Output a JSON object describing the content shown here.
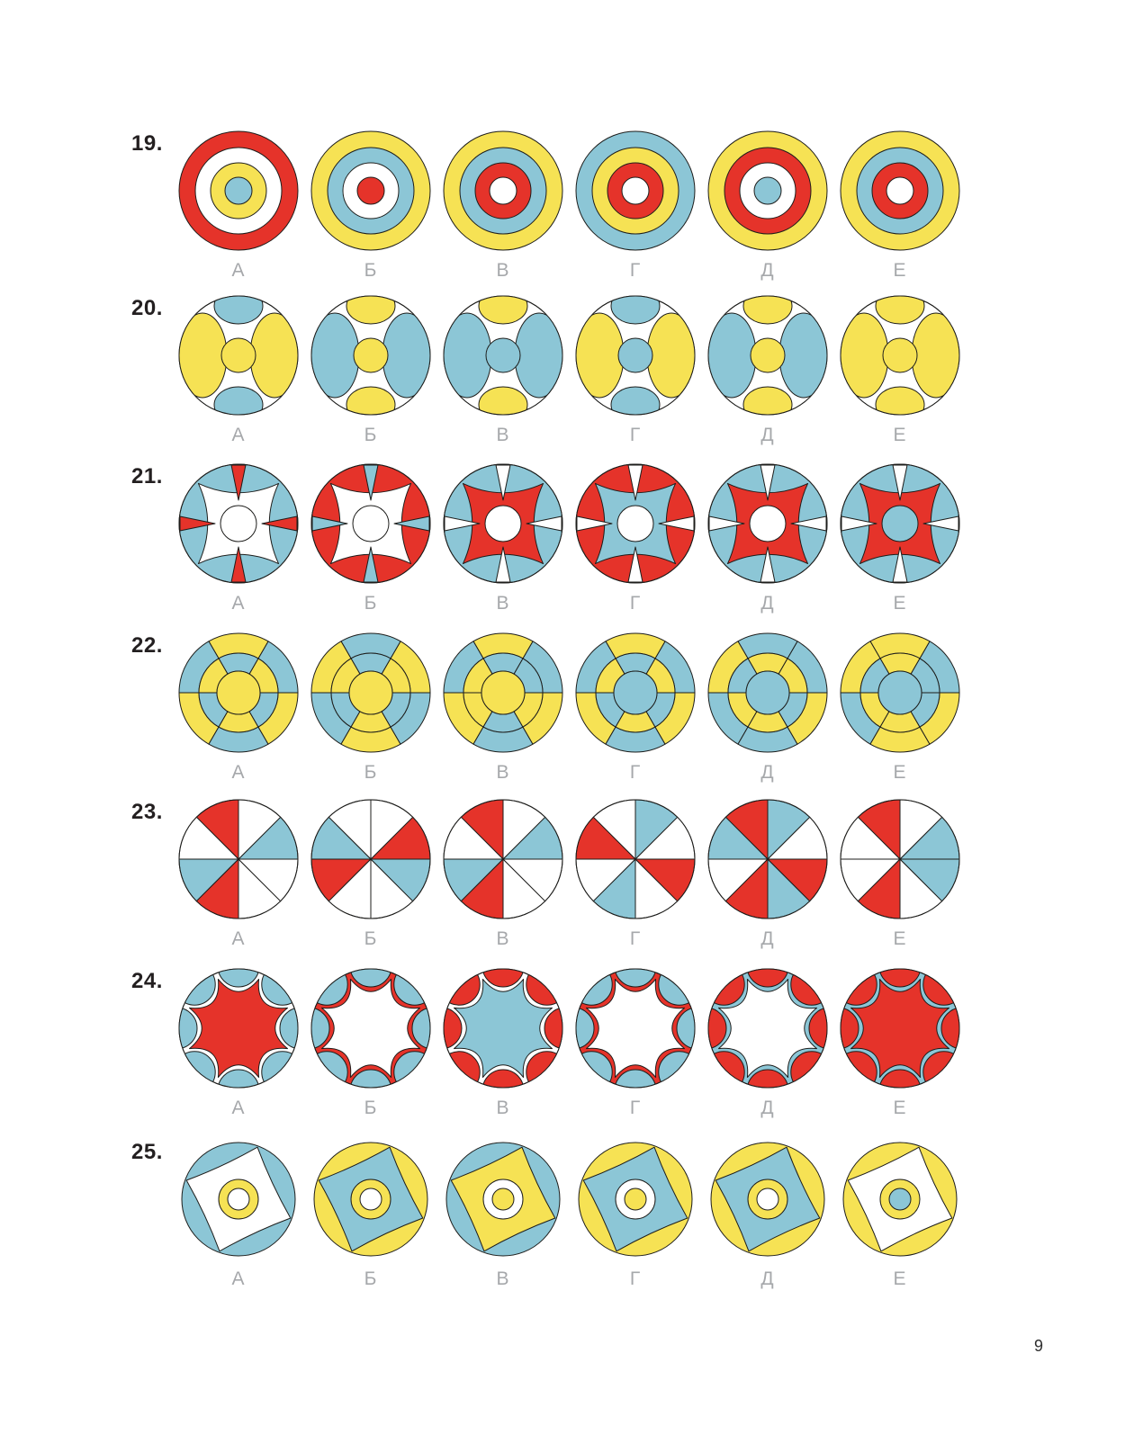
{
  "page": {
    "number": "9"
  },
  "colors": {
    "red": "#e5332a",
    "yellow": "#f6e254",
    "blue": "#8cc6d6",
    "white": "#ffffff",
    "outline": "#1d1d1b",
    "label_gray": "#a6a8ab",
    "question_number": "#231f20"
  },
  "option_labels": [
    "А",
    "Б",
    "В",
    "Г",
    "Д",
    "Е"
  ],
  "questions": [
    {
      "number": "19.",
      "type": "rings",
      "variants": [
        {
          "label": "А",
          "rings": [
            "red",
            "white",
            "yellow",
            "blue"
          ]
        },
        {
          "label": "Б",
          "rings": [
            "yellow",
            "blue",
            "white",
            "red"
          ]
        },
        {
          "label": "В",
          "rings": [
            "yellow",
            "blue",
            "red",
            "white"
          ]
        },
        {
          "label": "Г",
          "rings": [
            "blue",
            "yellow",
            "red",
            "white"
          ]
        },
        {
          "label": "Д",
          "rings": [
            "yellow",
            "red",
            "white",
            "blue"
          ]
        },
        {
          "label": "Е",
          "rings": [
            "yellow",
            "blue",
            "red",
            "white"
          ]
        }
      ]
    },
    {
      "number": "20.",
      "type": "lobes",
      "variants": [
        {
          "label": "А",
          "sides": "yellow",
          "top": "blue",
          "bottom": "blue",
          "center": "yellow"
        },
        {
          "label": "Б",
          "sides": "blue",
          "top": "yellow",
          "bottom": "yellow",
          "center": "yellow"
        },
        {
          "label": "В",
          "sides": "blue",
          "top": "yellow",
          "bottom": "yellow",
          "center": "blue"
        },
        {
          "label": "Г",
          "sides": "yellow",
          "top": "blue",
          "bottom": "blue",
          "center": "blue"
        },
        {
          "label": "Д",
          "sides": "blue",
          "top": "yellow",
          "bottom": "yellow",
          "center": "yellow"
        },
        {
          "label": "Е",
          "sides": "yellow",
          "top": "yellow",
          "bottom": "yellow",
          "center": "yellow"
        }
      ]
    },
    {
      "number": "21.",
      "type": "star4",
      "variants": [
        {
          "label": "А",
          "bg": "blue",
          "star": "white",
          "spikes": "red",
          "center": "white"
        },
        {
          "label": "Б",
          "bg": "red",
          "star": "white",
          "spikes": "blue",
          "center": "white"
        },
        {
          "label": "В",
          "bg": "blue",
          "star": "red",
          "spikes": "white",
          "center": "white"
        },
        {
          "label": "Г",
          "bg": "red",
          "star": "blue",
          "spikes": "white",
          "center": "white"
        },
        {
          "label": "Д",
          "bg": "blue",
          "star": "red",
          "spikes": "white",
          "center": "white"
        },
        {
          "label": "Е",
          "bg": "blue",
          "star": "red",
          "spikes": "white",
          "center": "blue"
        }
      ]
    },
    {
      "number": "22.",
      "type": "wheel6",
      "sector_order": [
        "right-top",
        "top",
        "left-top",
        "left-bottom",
        "bottom",
        "right-bottom"
      ],
      "variants": [
        {
          "label": "А",
          "outer": [
            "blue",
            "yellow",
            "blue",
            "yellow",
            "blue",
            "yellow"
          ],
          "middle": [
            "yellow",
            "blue",
            "yellow",
            "blue",
            "yellow",
            "blue"
          ],
          "center": "yellow"
        },
        {
          "label": "Б",
          "outer": [
            "yellow",
            "blue",
            "yellow",
            "blue",
            "yellow",
            "blue"
          ],
          "middle": [
            "yellow",
            "blue",
            "yellow",
            "blue",
            "yellow",
            "blue"
          ],
          "center": "yellow"
        },
        {
          "label": "В",
          "outer": [
            "blue",
            "yellow",
            "blue",
            "yellow",
            "blue",
            "yellow"
          ],
          "middle": [
            "blue",
            "blue",
            "yellow",
            "yellow",
            "blue",
            "yellow"
          ],
          "center": "yellow"
        },
        {
          "label": "Г",
          "outer": [
            "blue",
            "yellow",
            "blue",
            "yellow",
            "blue",
            "yellow"
          ],
          "middle": [
            "yellow",
            "blue",
            "yellow",
            "blue",
            "yellow",
            "blue"
          ],
          "center": "blue"
        },
        {
          "label": "Д",
          "outer": [
            "blue",
            "blue",
            "yellow",
            "blue",
            "blue",
            "yellow"
          ],
          "middle": [
            "yellow",
            "yellow",
            "blue",
            "yellow",
            "yellow",
            "blue"
          ],
          "center": "blue"
        },
        {
          "label": "Е",
          "outer": [
            "blue",
            "yellow",
            "yellow",
            "blue",
            "yellow",
            "yellow"
          ],
          "middle": [
            "blue",
            "yellow",
            "blue",
            "yellow",
            "yellow",
            "blue"
          ],
          "center": "blue"
        }
      ]
    },
    {
      "number": "23.",
      "type": "pie8",
      "sector_order": "counterclockwise from 3 o'clock, 45 degrees each",
      "variants": [
        {
          "label": "А",
          "sectors": [
            "blue",
            "white",
            "red",
            "white",
            "blue",
            "red",
            "white",
            "white"
          ]
        },
        {
          "label": "Б",
          "sectors": [
            "red",
            "white",
            "white",
            "blue",
            "red",
            "white",
            "white",
            "blue"
          ]
        },
        {
          "label": "В",
          "sectors": [
            "blue",
            "white",
            "red",
            "white",
            "blue",
            "red",
            "white",
            "white"
          ]
        },
        {
          "label": "Г",
          "sectors": [
            "white",
            "blue",
            "white",
            "red",
            "white",
            "blue",
            "white",
            "red"
          ]
        },
        {
          "label": "Д",
          "sectors": [
            "white",
            "blue",
            "red",
            "blue",
            "white",
            "red",
            "blue",
            "red"
          ]
        },
        {
          "label": "Е",
          "sectors": [
            "blue",
            "white",
            "red",
            "white",
            "white",
            "red",
            "white",
            "blue"
          ]
        }
      ]
    },
    {
      "number": "24.",
      "type": "scallop",
      "variants": [
        {
          "label": "А",
          "lobes": "blue",
          "bg": "white",
          "star": "red"
        },
        {
          "label": "Б",
          "lobes": "blue",
          "bg": "red",
          "star": "white"
        },
        {
          "label": "В",
          "lobes": "red",
          "bg": "white",
          "star": "blue"
        },
        {
          "label": "Г",
          "lobes": "blue",
          "bg": "red",
          "star": "white"
        },
        {
          "label": "Д",
          "lobes": "red",
          "bg": "blue",
          "star": "white"
        },
        {
          "label": "Е",
          "lobes": "red",
          "bg": "blue",
          "star": "red"
        }
      ]
    },
    {
      "number": "25.",
      "type": "pinwheel",
      "variants": [
        {
          "label": "А",
          "bg": "blue",
          "square": "white",
          "ring": "yellow",
          "hole": "white"
        },
        {
          "label": "Б",
          "bg": "yellow",
          "square": "blue",
          "ring": "yellow",
          "hole": "white"
        },
        {
          "label": "В",
          "bg": "blue",
          "square": "yellow",
          "ring": "white",
          "hole": "yellow"
        },
        {
          "label": "Г",
          "bg": "yellow",
          "square": "blue",
          "ring": "white",
          "hole": "yellow"
        },
        {
          "label": "Д",
          "bg": "yellow",
          "square": "blue",
          "ring": "yellow",
          "hole": "white"
        },
        {
          "label": "Е",
          "bg": "yellow",
          "square": "white",
          "ring": "yellow",
          "hole": "blue"
        }
      ]
    }
  ]
}
